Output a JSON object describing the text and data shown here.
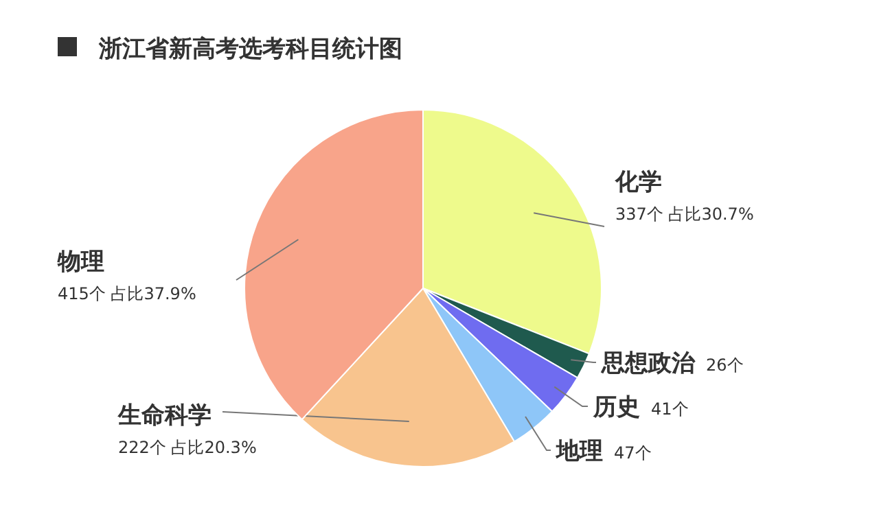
{
  "chart_data": {
    "type": "pie",
    "title": "浙江省新高考选考科目统计图",
    "categories": [
      "化学",
      "思想政治",
      "历史",
      "地理",
      "生命科学",
      "物理"
    ],
    "values": [
      337,
      26,
      41,
      47,
      222,
      415
    ],
    "colors": [
      "#eefa8c",
      "#1f5a4e",
      "#6f6cf0",
      "#8ec6f8",
      "#f8c48e",
      "#f8a48a"
    ],
    "value_labels": [
      "337个 占比30.7%",
      "26个",
      "41个",
      "47个",
      "222个 占比20.3%",
      "415个 占比37.9%"
    ]
  }
}
